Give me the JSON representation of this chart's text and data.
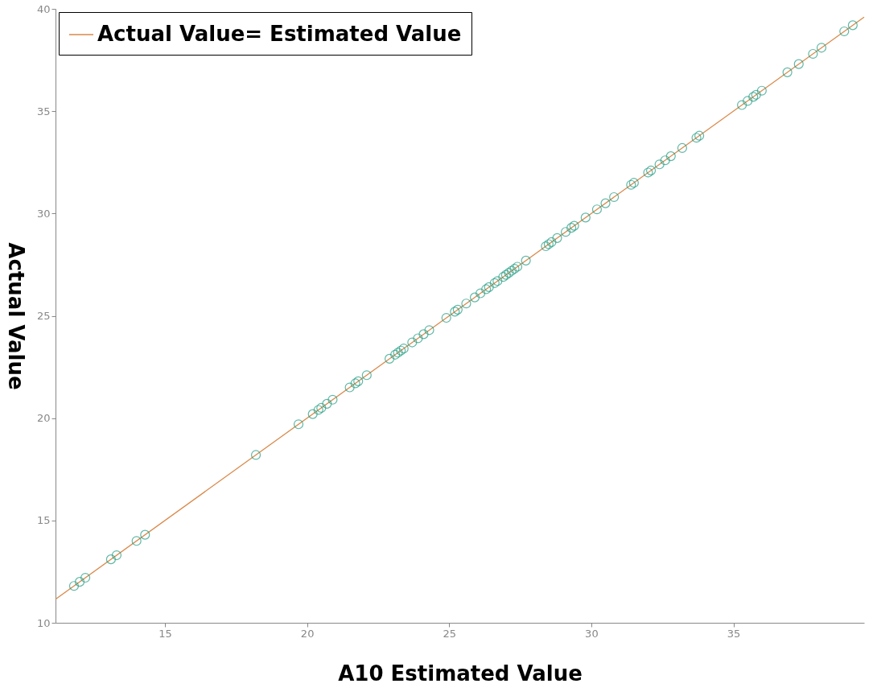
{
  "chart_data": {
    "type": "scatter",
    "xlabel": "A10 Estimated Value",
    "ylabel": "Actual Value",
    "xlim": [
      11.15,
      39.6
    ],
    "ylim": [
      10,
      40
    ],
    "xticks": [
      15,
      20,
      25,
      30,
      35
    ],
    "yticks": [
      10,
      15,
      20,
      25,
      30,
      35,
      40
    ],
    "grid": false,
    "legend": "top left",
    "series": [
      {
        "name": "Actual Value= Estimated Value",
        "type": "line",
        "color": "#d9894a",
        "marker": "none",
        "x": [
          11.15,
          39.6
        ],
        "values": [
          11.15,
          39.6
        ]
      },
      {
        "color": "#1f9a80",
        "marker": "circle",
        "x": [
          11.8,
          12.0,
          12.2,
          13.1,
          13.3,
          14.0,
          14.3,
          18.2,
          19.7,
          20.2,
          20.4,
          20.5,
          20.7,
          20.9,
          21.5,
          21.7,
          21.8,
          22.1,
          22.9,
          23.1,
          23.2,
          23.3,
          23.4,
          23.7,
          23.9,
          24.1,
          24.3,
          24.9,
          25.2,
          25.3,
          25.6,
          25.9,
          26.1,
          26.3,
          26.4,
          26.6,
          26.7,
          26.9,
          27.0,
          27.1,
          27.2,
          27.3,
          27.4,
          27.7,
          28.4,
          28.5,
          28.6,
          28.8,
          29.1,
          29.3,
          29.4,
          29.8,
          30.2,
          30.5,
          30.8,
          31.4,
          31.5,
          32.0,
          32.1,
          32.4,
          32.6,
          32.8,
          33.2,
          33.7,
          33.8,
          35.3,
          35.5,
          35.7,
          35.8,
          36.0,
          36.9,
          37.3,
          37.8,
          38.1,
          38.9,
          39.2
        ],
        "values": [
          11.8,
          12.0,
          12.2,
          13.1,
          13.3,
          14.0,
          14.3,
          18.2,
          19.7,
          20.2,
          20.4,
          20.5,
          20.7,
          20.9,
          21.5,
          21.7,
          21.8,
          22.1,
          22.9,
          23.1,
          23.2,
          23.3,
          23.4,
          23.7,
          23.9,
          24.1,
          24.3,
          24.9,
          25.2,
          25.3,
          25.6,
          25.9,
          26.1,
          26.3,
          26.4,
          26.6,
          26.7,
          26.9,
          27.0,
          27.1,
          27.2,
          27.3,
          27.4,
          27.7,
          28.4,
          28.5,
          28.6,
          28.8,
          29.1,
          29.3,
          29.4,
          29.8,
          30.2,
          30.5,
          30.8,
          31.4,
          31.5,
          32.0,
          32.1,
          32.4,
          32.6,
          32.8,
          33.2,
          33.7,
          33.8,
          35.3,
          35.5,
          35.7,
          35.8,
          36.0,
          36.9,
          37.3,
          37.8,
          38.1,
          38.9,
          39.2
        ]
      }
    ]
  }
}
